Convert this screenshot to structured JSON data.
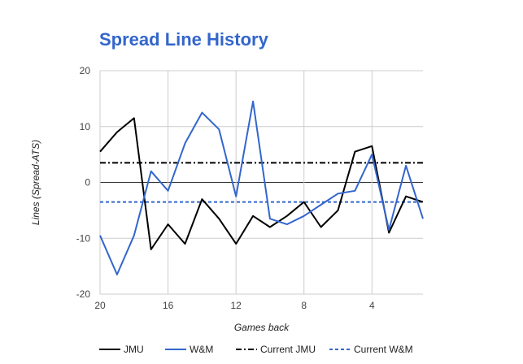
{
  "chart_data": {
    "type": "line",
    "title": "Spread Line History",
    "xlabel": "Games back",
    "ylabel": "Lines (Spread-ATS)",
    "xlim": [
      20,
      1
    ],
    "ylim": [
      -20,
      20
    ],
    "x_ticks": [
      20,
      16,
      12,
      8,
      4
    ],
    "y_ticks": [
      -20,
      -10,
      0,
      10,
      20
    ],
    "grid": true,
    "legend_position": "bottom",
    "x": [
      20,
      19,
      18,
      17,
      16,
      15,
      14,
      13,
      12,
      11,
      10,
      9,
      8,
      7,
      6,
      5,
      4,
      3,
      2,
      1
    ],
    "series": [
      {
        "name": "JMU",
        "color": "#000000",
        "style": "solid",
        "values": [
          5.5,
          9,
          11.5,
          -12,
          -7.5,
          -11,
          -3,
          -6.5,
          -11,
          -6,
          -8,
          -6,
          -3.5,
          -8,
          -5,
          5.5,
          6.5,
          -9,
          -2.5,
          -3.5
        ]
      },
      {
        "name": "W&M",
        "color": "#3366cc",
        "style": "solid",
        "values": [
          -9.5,
          -16.5,
          -9.5,
          2,
          -1.5,
          7,
          12.5,
          9.5,
          -2.5,
          14.5,
          -6.5,
          -7.5,
          -6,
          -4,
          -2,
          -1.5,
          5,
          -8.5,
          3,
          -6.5
        ]
      },
      {
        "name": "Current JMU",
        "color": "#000000",
        "style": "dashdot",
        "values": [
          3.5,
          3.5,
          3.5,
          3.5,
          3.5,
          3.5,
          3.5,
          3.5,
          3.5,
          3.5,
          3.5,
          3.5,
          3.5,
          3.5,
          3.5,
          3.5,
          3.5,
          3.5,
          3.5,
          3.5
        ]
      },
      {
        "name": "Current W&M",
        "color": "#3366cc",
        "style": "dashed",
        "values": [
          -3.5,
          -3.5,
          -3.5,
          -3.5,
          -3.5,
          -3.5,
          -3.5,
          -3.5,
          -3.5,
          -3.5,
          -3.5,
          -3.5,
          -3.5,
          -3.5,
          -3.5,
          -3.5,
          -3.5,
          -3.5,
          -3.5,
          -3.5
        ]
      }
    ]
  }
}
